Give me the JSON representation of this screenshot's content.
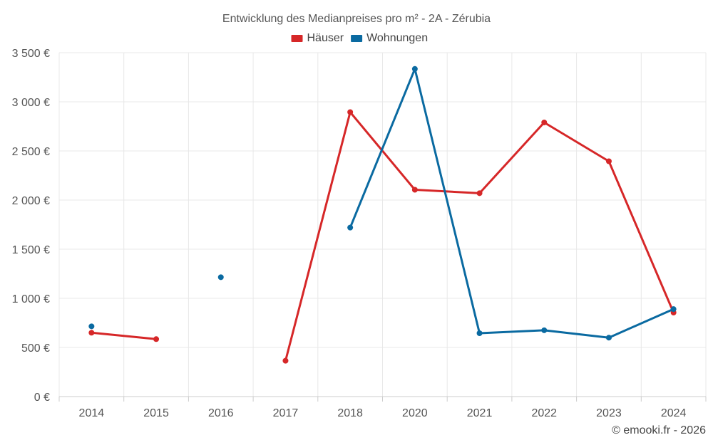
{
  "chart_data": {
    "type": "line",
    "title": "Entwicklung des Medianpreises pro m² - 2A - Zérubia",
    "categories": [
      "2014",
      "2015",
      "2016",
      "2017",
      "2018",
      "2020",
      "2021",
      "2022",
      "2023",
      "2024"
    ],
    "ylim": [
      0,
      3500
    ],
    "yticks": [
      0,
      500,
      1000,
      1500,
      2000,
      2500,
      3000,
      3500
    ],
    "ytick_labels": [
      "0 €",
      "500 €",
      "1 000 €",
      "1 500 €",
      "2 000 €",
      "2 500 €",
      "3 000 €",
      "3 500 €"
    ],
    "grid": true,
    "legend_position": "top-center",
    "series": [
      {
        "name": "Häuser",
        "color": "#d62728",
        "values": [
          650,
          585,
          null,
          365,
          2895,
          2105,
          2070,
          2790,
          2395,
          855
        ]
      },
      {
        "name": "Wohnungen",
        "color": "#0a6aa1",
        "values": [
          715,
          null,
          1215,
          null,
          1720,
          3335,
          645,
          675,
          600,
          890
        ]
      }
    ]
  },
  "credit": "© emooki.fr - 2026"
}
